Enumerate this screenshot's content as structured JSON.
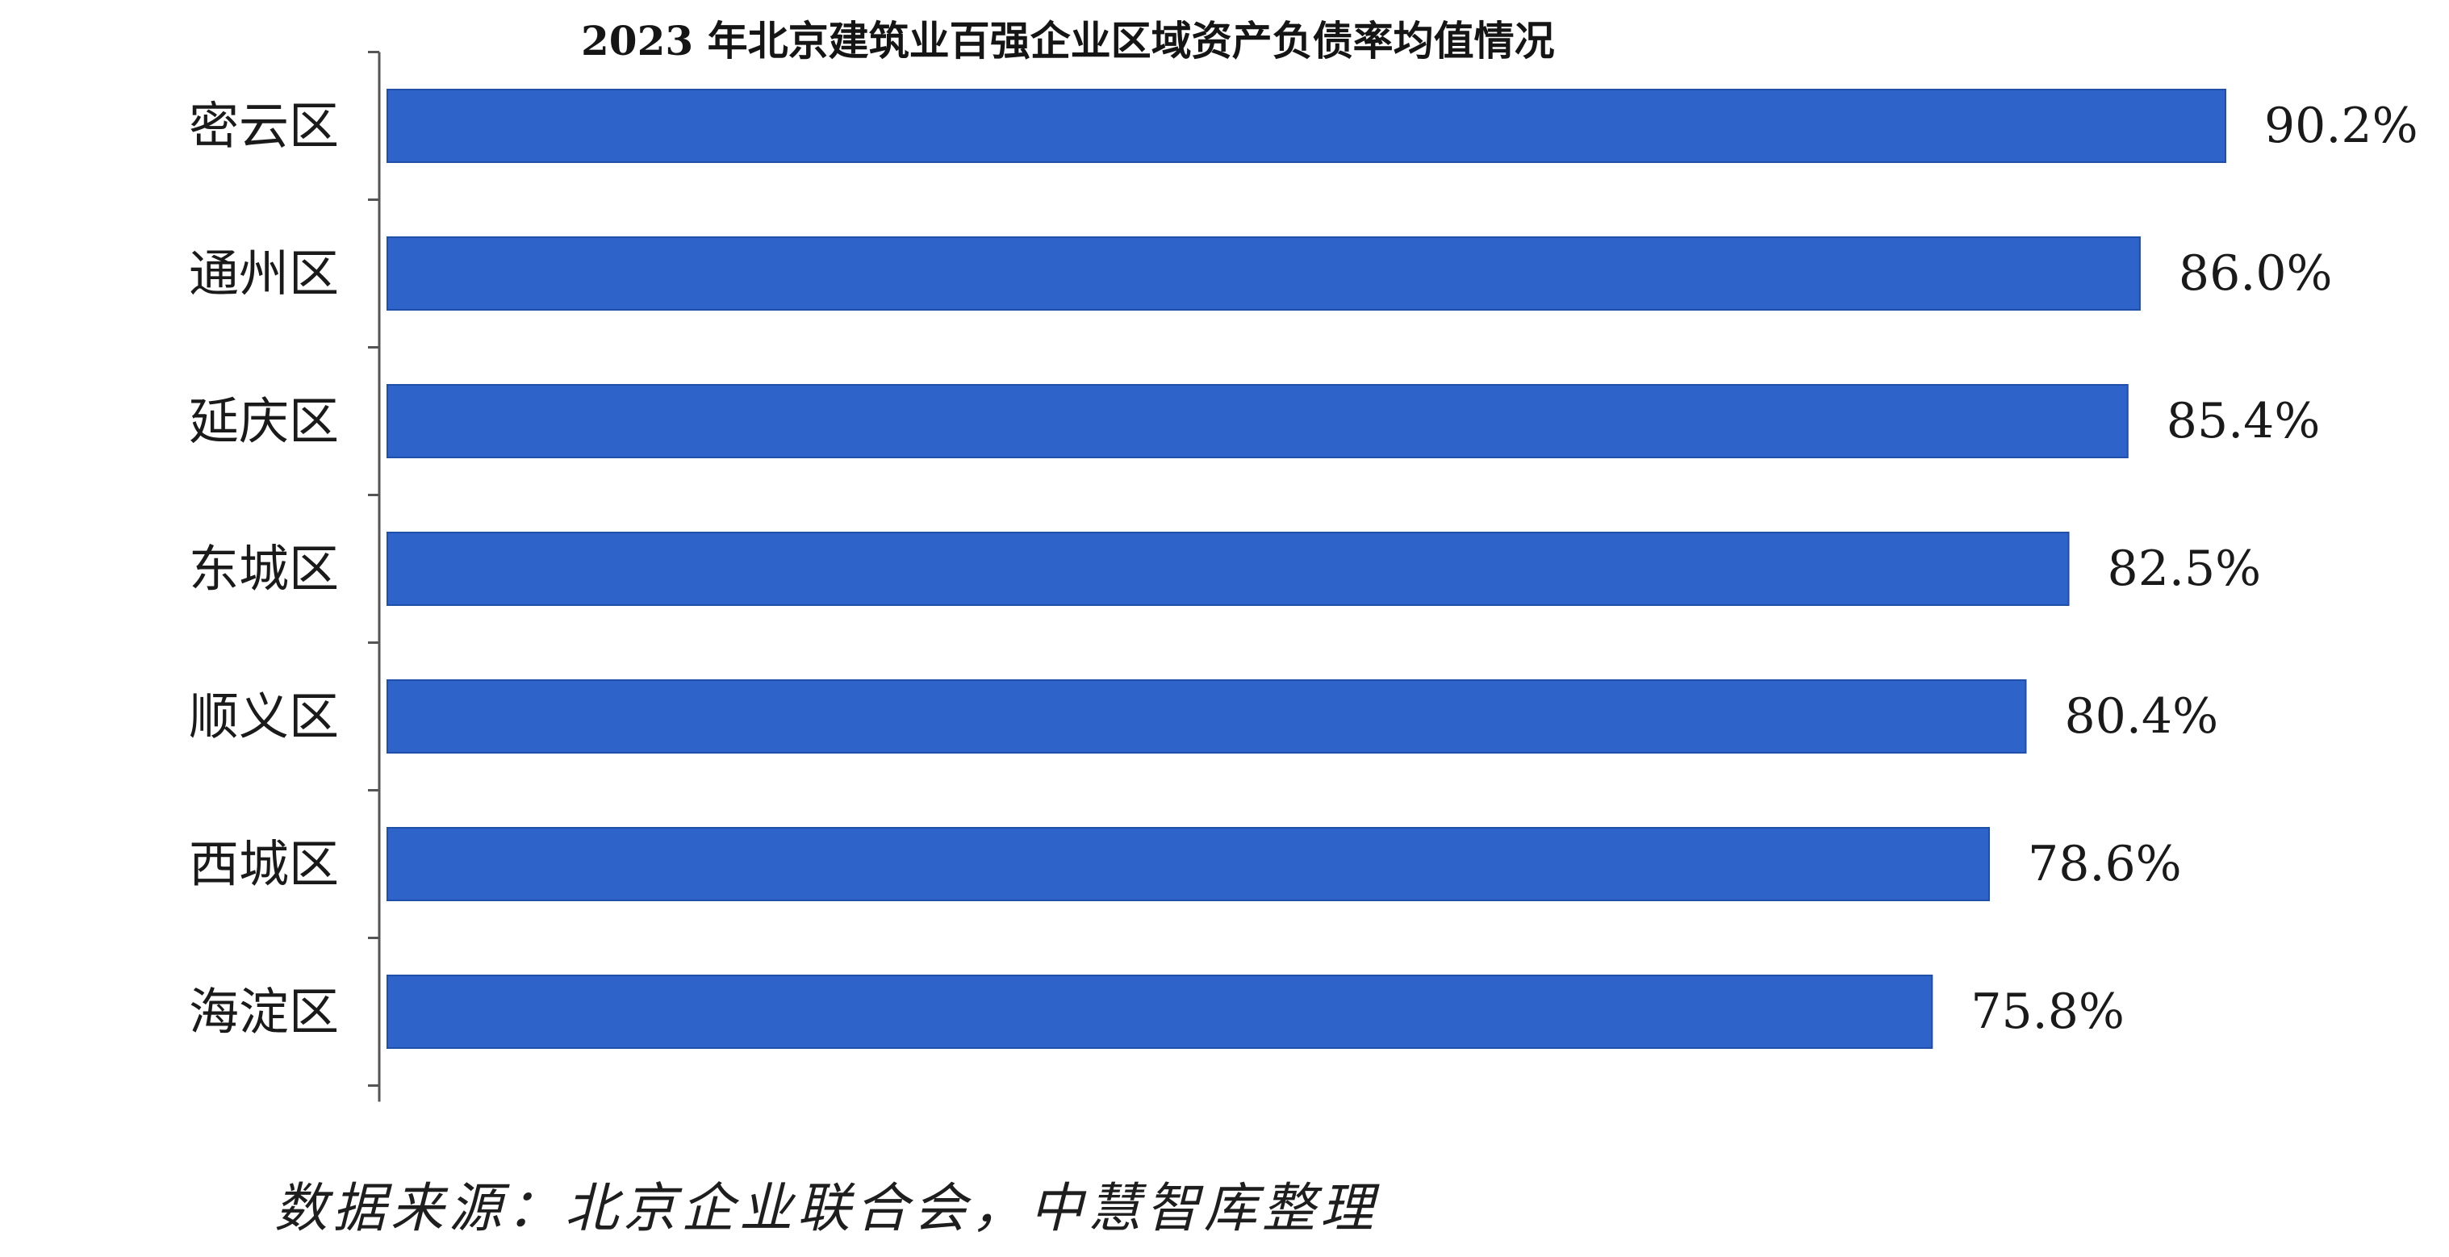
{
  "chart_data": {
    "type": "bar",
    "orientation": "horizontal",
    "title": "2023 年北京建筑业百强企业区域资产负债率均值情况",
    "categories": [
      "密云区",
      "通州区",
      "延庆区",
      "东城区",
      "顺义区",
      "西城区",
      "海淀区"
    ],
    "values": [
      90.2,
      86.0,
      85.4,
      82.5,
      80.4,
      78.6,
      75.8
    ],
    "value_labels": [
      "90.2%",
      "86.0%",
      "85.4%",
      "82.5%",
      "80.4%",
      "78.6%",
      "75.8%"
    ],
    "xlabel": "",
    "ylabel": "",
    "value_axis_visible": false,
    "legend": "none",
    "grid": false,
    "bar_color": "#2e63c9"
  },
  "source_note": "数据来源：北京企业联合会，中慧智库整理"
}
